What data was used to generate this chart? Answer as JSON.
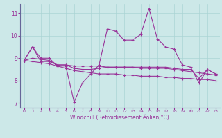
{
  "xlabel": "Windchill (Refroidissement éolien,°C)",
  "bg_color": "#cce8e8",
  "grid_color": "#aad4d4",
  "line_color": "#993399",
  "spine_color": "#666699",
  "xlim": [
    -0.5,
    23.5
  ],
  "ylim": [
    6.8,
    11.4
  ],
  "xticks": [
    0,
    1,
    2,
    3,
    4,
    5,
    6,
    7,
    8,
    9,
    10,
    11,
    12,
    13,
    14,
    15,
    16,
    17,
    18,
    19,
    20,
    21,
    22,
    23
  ],
  "yticks": [
    7,
    8,
    9,
    10,
    11
  ],
  "series": [
    [
      8.9,
      9.5,
      9.0,
      9.0,
      8.65,
      8.65,
      7.05,
      7.9,
      8.3,
      8.7,
      10.3,
      10.2,
      9.8,
      9.8,
      10.05,
      11.2,
      9.85,
      9.5,
      9.4,
      8.7,
      8.6,
      7.9,
      8.5,
      8.3
    ],
    [
      8.9,
      9.5,
      8.85,
      8.85,
      8.7,
      8.7,
      8.65,
      8.65,
      8.65,
      8.65,
      8.6,
      8.6,
      8.6,
      8.6,
      8.55,
      8.55,
      8.55,
      8.55,
      8.5,
      8.45,
      8.4,
      8.35,
      8.3,
      8.25
    ],
    [
      8.9,
      8.85,
      8.8,
      8.75,
      8.65,
      8.55,
      8.45,
      8.4,
      8.35,
      8.3,
      8.3,
      8.3,
      8.25,
      8.25,
      8.2,
      8.2,
      8.2,
      8.15,
      8.15,
      8.1,
      8.1,
      8.05,
      8.05,
      8.0
    ],
    [
      8.9,
      9.0,
      8.95,
      8.9,
      8.7,
      8.7,
      8.55,
      8.5,
      8.5,
      8.55,
      8.6,
      8.6,
      8.6,
      8.6,
      8.6,
      8.6,
      8.6,
      8.6,
      8.55,
      8.5,
      8.5,
      8.1,
      8.5,
      8.3
    ]
  ]
}
